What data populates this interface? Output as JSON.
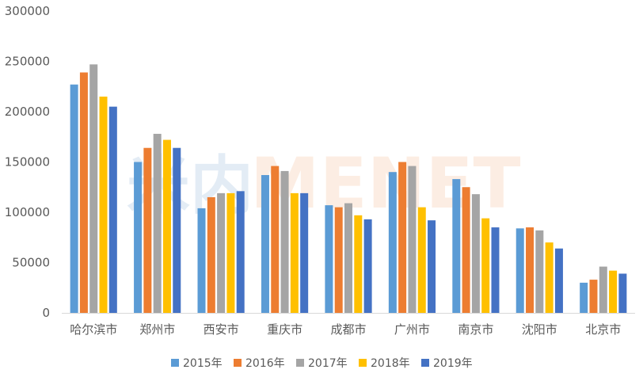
{
  "chart_data": {
    "type": "bar",
    "title": "",
    "xlabel": "",
    "ylabel": "",
    "ylim": [
      0,
      300000
    ],
    "yticks": [
      0,
      50000,
      100000,
      150000,
      200000,
      250000,
      300000
    ],
    "grid": false,
    "legend_position": "bottom",
    "categories": [
      "哈尔滨市",
      "郑州市",
      "西安市",
      "重庆市",
      "成都市",
      "广州市",
      "南京市",
      "沈阳市",
      "北京市"
    ],
    "series": [
      {
        "name": "2015年",
        "color": "#5B9BD5",
        "values": [
          227000,
          150000,
          104000,
          137000,
          107000,
          140000,
          133000,
          84000,
          30000
        ]
      },
      {
        "name": "2016年",
        "color": "#ED7D31",
        "values": [
          239000,
          164000,
          115000,
          146000,
          105000,
          150000,
          125000,
          85000,
          33000
        ]
      },
      {
        "name": "2017年",
        "color": "#A5A5A5",
        "values": [
          247000,
          178000,
          119000,
          141000,
          109000,
          146000,
          118000,
          82000,
          46000
        ]
      },
      {
        "name": "2018年",
        "color": "#FFC000",
        "values": [
          215000,
          172000,
          119000,
          119000,
          97000,
          105000,
          94000,
          70000,
          42000
        ]
      },
      {
        "name": "2019年",
        "color": "#4472C4",
        "values": [
          205000,
          164000,
          121000,
          119000,
          93000,
          92000,
          85000,
          64000,
          39000
        ]
      }
    ]
  },
  "watermark": {
    "text": "MENET",
    "glyph": "米内"
  }
}
